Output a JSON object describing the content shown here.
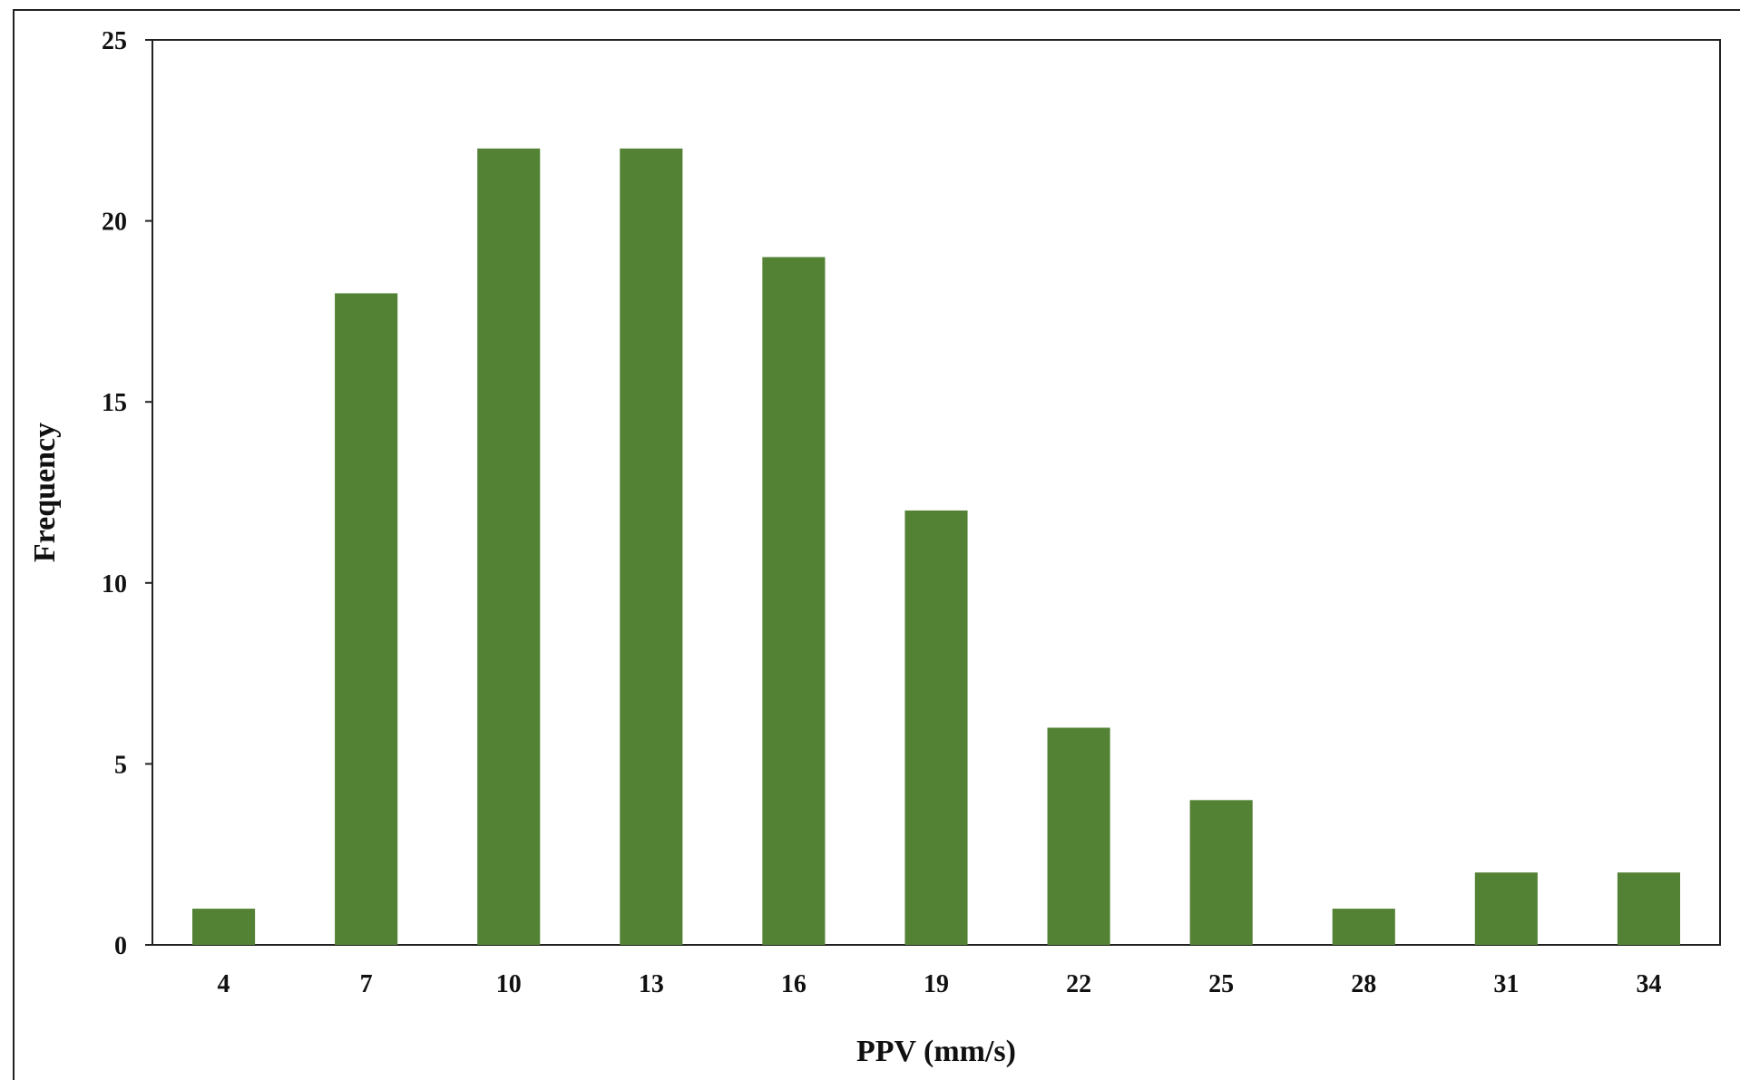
{
  "chart_data": {
    "type": "bar",
    "categories": [
      "4",
      "7",
      "10",
      "13",
      "16",
      "19",
      "22",
      "25",
      "28",
      "31",
      "34"
    ],
    "values": [
      1,
      18,
      22,
      22,
      19,
      12,
      6,
      4,
      1,
      2,
      2
    ],
    "xlabel": "PPV (mm/s)",
    "ylabel": "Frequency",
    "ylim": [
      0,
      25
    ],
    "yticks": [
      "0",
      "5",
      "10",
      "15",
      "20",
      "25"
    ],
    "grid": false,
    "legend": "none",
    "bar_color": "#548235"
  }
}
